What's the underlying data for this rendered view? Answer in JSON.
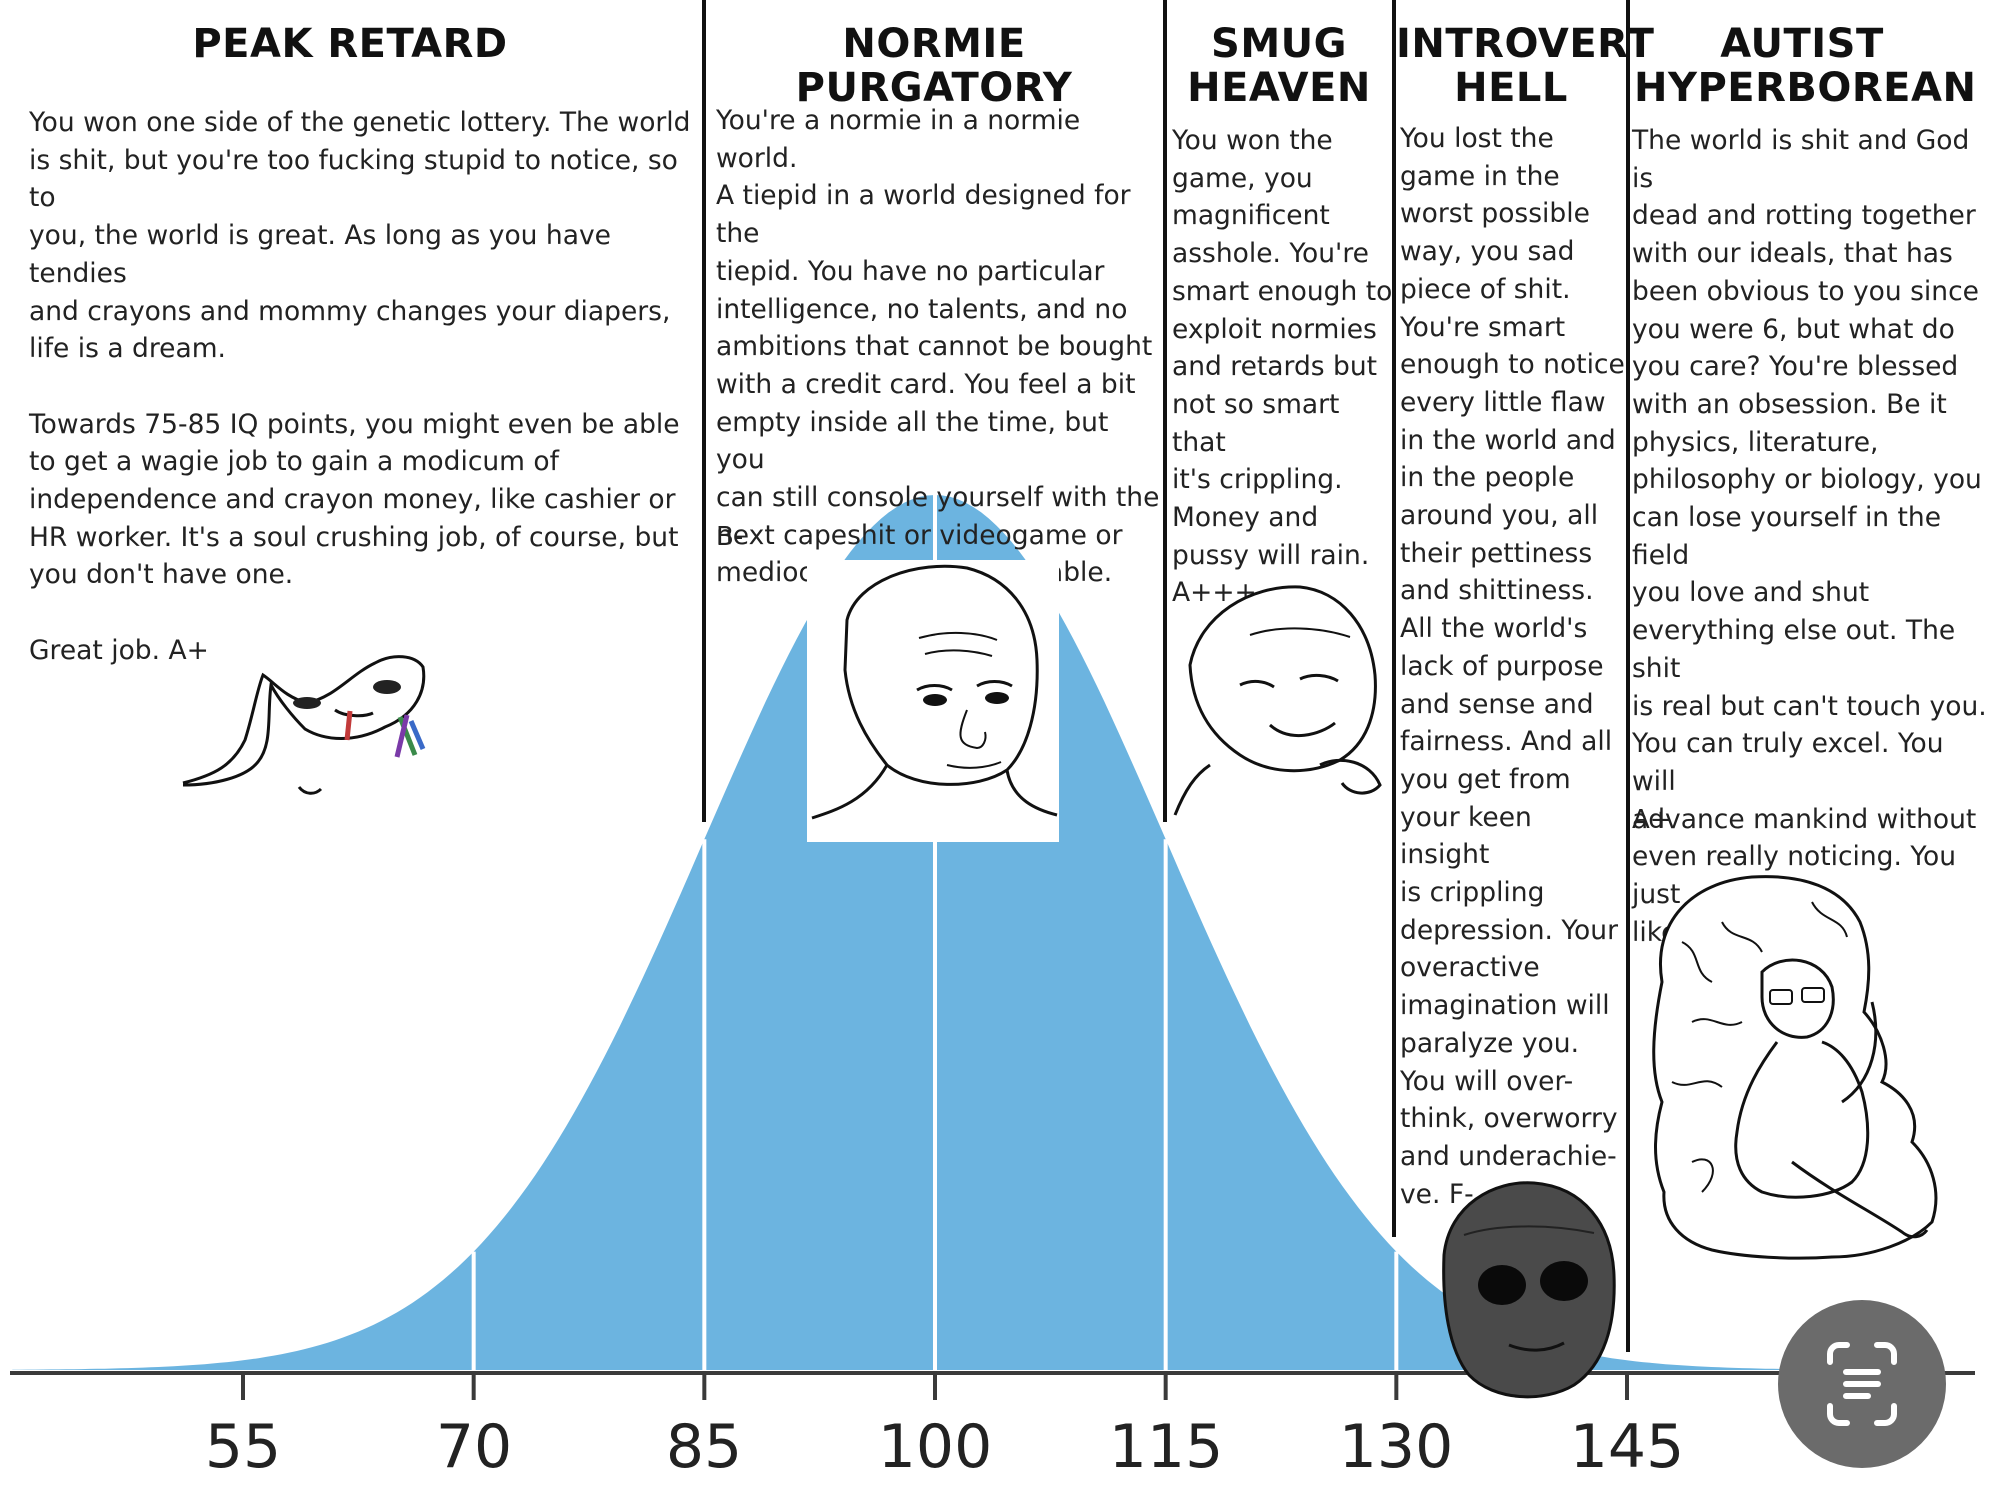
{
  "columns": [
    {
      "heading": "PEAK RETARD",
      "body": "You won one side of the genetic lottery. The world\nis shit, but you're too fucking stupid to notice, so to\nyou, the world is great. As long as you have tendies\nand crayons and mommy changes your diapers,\nlife is a dream.\n\nTowards 75-85 IQ points, you might even be able\nto get a wagie job to gain a modicum of\nindependence and crayon money, like cashier or\nHR worker. It's a soul crushing job, of course, but\nyou don't have one.\n\nGreat job. A+",
      "grade": ""
    },
    {
      "heading": "NORMIE PURGATORY",
      "body": "You're a normie in a normie world.\nA tiepid in a world designed for the\ntiepid. You have no particular\nintelligence, no talents, and no\nambitions that cannot be bought\nwith a credit card. You feel a bit\nempty inside all the time, but you\ncan still console yourself with the\nnext capeshit or videogame or\nmediocre pussy. It's tolerable.",
      "grade": "B-"
    },
    {
      "heading": "SMUG\nHEAVEN",
      "body": "You won the\ngame, you\nmagnificent\nasshole. You're\nsmart enough to\nexploit normies\nand retards but\nnot so smart that\nit's crippling.\nMoney and\npussy will rain.\nA+++",
      "grade": ""
    },
    {
      "heading": "INTROVERT\nHELL",
      "body": "You lost the\ngame in the\nworst possible\nway, you sad\npiece of shit.\nYou're smart\nenough to notice\nevery little flaw\nin the world and\nin the people\naround you, all\ntheir pettiness\nand shittiness.\nAll the world's\nlack of purpose\nand sense and\nfairness. And all\nyou get from\nyour keen insight\nis crippling\ndepression. Your\noveractive\nimagination will\nparalyze you.\nYou will over-\nthink, overworry\nand underachie-\nve.  F-",
      "grade": ""
    },
    {
      "heading": "AUTIST\nHYPERBOREAN",
      "body": "The world is shit and God is\ndead and rotting together\nwith our ideals, that has\nbeen obvious to you since\nyou were 6, but what do\nyou care? You're blessed\nwith an obsession. Be it\nphysics, literature,\nphilosophy or biology, you\ncan lose yourself in the field\nyou love and shut\neverything else out. The shit\nis real but can't touch you.\nYou can truly excel. You will\nadvance mankind without\neven really noticing. You just\nlike doing it.",
      "grade": "A+"
    }
  ],
  "axis": {
    "ticks": [
      "55",
      "70",
      "85",
      "100",
      "115",
      "130",
      "145"
    ]
  },
  "colors": {
    "curve_fill": "#6cb4e0",
    "gridline": "#ffffff",
    "divider": "#111111",
    "lens_button": "#6b6b6b"
  },
  "icons": {
    "lens_button": "google-lens-scan-icon"
  }
}
